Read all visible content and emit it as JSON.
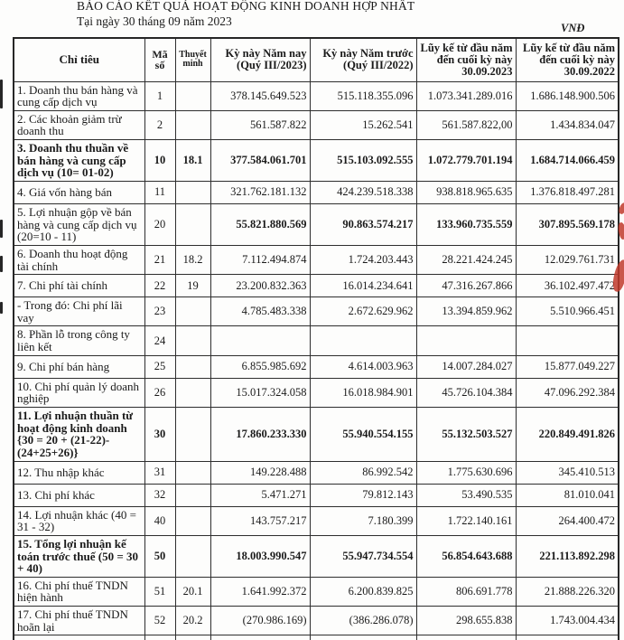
{
  "page": {
    "title": "BÁO CÁO KẾT QUẢ HOẠT ĐỘNG KINH DOANH HỢP NHẤT",
    "date_line": "Tại ngày 30 tháng 09 năm 2023",
    "currency_unit": "VNĐ"
  },
  "table": {
    "columns": [
      "Chỉ tiêu",
      "Mã số",
      "Thuyết minh",
      "Kỳ này Năm nay (Quý III/2023)",
      "Kỳ này Năm trước (Quý III/2022)",
      "Lũy kế từ đầu năm đến cuối kỳ này 30.09.2023",
      "Lũy kế từ đầu năm đến cuối kỳ này 30.09.2022"
    ],
    "rows": [
      {
        "label": "1. Doanh thu bán hàng và cung cấp dịch vụ",
        "code": "1",
        "note": "",
        "values": [
          "378.145.649.523",
          "515.118.355.096",
          "1.073.341.289.016",
          "1.686.148.900.506"
        ],
        "bold": "none"
      },
      {
        "label": "2. Các khoản giảm trừ doanh thu",
        "code": "2",
        "note": "",
        "values": [
          "561.587.822",
          "15.262.541",
          "561.587.822,00",
          "1.434.834.047"
        ],
        "bold": "none"
      },
      {
        "label": "3. Doanh thu thuần về bán hàng và cung cấp dịch vụ (10= 01-02)",
        "code": "10",
        "note": "18.1",
        "values": [
          "377.584.061.701",
          "515.103.092.555",
          "1.072.779.701.194",
          "1.684.714.066.459"
        ],
        "bold": "all"
      },
      {
        "label": "4. Giá vốn hàng bán",
        "code": "11",
        "note": "",
        "values": [
          "321.762.181.132",
          "424.239.518.338",
          "938.818.965.635",
          "1.376.818.497.281"
        ],
        "bold": "none"
      },
      {
        "label": "5. Lợi nhuận gộp về bán hàng và cung cấp dịch vụ (20=10 - 11)",
        "code": "20",
        "note": "",
        "values": [
          "55.821.880.569",
          "90.863.574.217",
          "133.960.735.559",
          "307.895.569.178"
        ],
        "bold": "values"
      },
      {
        "label": "6. Doanh thu hoạt động tài chính",
        "code": "21",
        "note": "18.2",
        "values": [
          "7.112.494.874",
          "1.724.203.443",
          "28.221.424.245",
          "12.029.761.731"
        ],
        "bold": "none"
      },
      {
        "label": "7. Chi phí tài chính",
        "code": "22",
        "note": "19",
        "values": [
          "23.200.832.363",
          "16.014.234.641",
          "47.316.267.866",
          "36.102.497.472"
        ],
        "bold": "none"
      },
      {
        "label": "- Trong đó: Chi phí lãi vay",
        "code": "23",
        "note": "",
        "values": [
          "4.785.483.338",
          "2.672.629.962",
          "13.394.859.962",
          "5.510.966.451"
        ],
        "bold": "none"
      },
      {
        "label": "8. Phần lỗ trong công ty liên kết",
        "code": "24",
        "note": "",
        "values": [
          "",
          "",
          "",
          ""
        ],
        "bold": "none"
      },
      {
        "label": "9. Chi phí bán hàng",
        "code": "25",
        "note": "",
        "values": [
          "6.855.985.692",
          "4.614.003.963",
          "14.007.284.027",
          "15.877.049.227"
        ],
        "bold": "none"
      },
      {
        "label": "10. Chi phí quản lý doanh nghiệp",
        "code": "26",
        "note": "",
        "values": [
          "15.017.324.058",
          "16.018.984.901",
          "45.726.104.384",
          "47.096.292.384"
        ],
        "bold": "none"
      },
      {
        "label": "11. Lợi nhuận thuần từ hoạt động kinh doanh {30 = 20 + (21-22)-(24+25+26)}",
        "code": "30",
        "note": "",
        "values": [
          "17.860.233.330",
          "55.940.554.155",
          "55.132.503.527",
          "220.849.491.826"
        ],
        "bold": "all"
      },
      {
        "label": "12. Thu nhập khác",
        "code": "31",
        "note": "",
        "values": [
          "149.228.488",
          "86.992.542",
          "1.775.630.696",
          "345.410.513"
        ],
        "bold": "none"
      },
      {
        "label": "13. Chi phí khác",
        "code": "32",
        "note": "",
        "values": [
          "5.471.271",
          "79.812.143",
          "53.490.535",
          "81.010.041"
        ],
        "bold": "none"
      },
      {
        "label": "14. Lợi nhuận khác (40 = 31 - 32)",
        "code": "40",
        "note": "",
        "values": [
          "143.757.217",
          "7.180.399",
          "1.722.140.161",
          "264.400.472"
        ],
        "bold": "none"
      },
      {
        "label": "15. Tổng lợi nhuận kế toán trước thuế (50 = 30 + 40)",
        "code": "50",
        "note": "",
        "values": [
          "18.003.990.547",
          "55.947.734.554",
          "56.854.643.688",
          "221.113.892.298"
        ],
        "bold": "all"
      },
      {
        "label": "16. Chi phí thuế TNDN hiện hành",
        "code": "51",
        "note": "20.1",
        "values": [
          "1.641.992.372",
          "6.200.839.825",
          "806.691.778",
          "21.888.226.320"
        ],
        "bold": "none"
      },
      {
        "label": "17. Chi phí thuế TNDN hoãn lại",
        "code": "52",
        "note": "20.2",
        "values": [
          "(270.986.169)",
          "(386.286.078)",
          "298.655.838",
          "1.743.004.434"
        ],
        "bold": "none"
      },
      {
        "label": "",
        "code": "",
        "note": "",
        "values": [
          "",
          "",
          "",
          ""
        ],
        "bold": "none"
      }
    ]
  },
  "artifacts": {
    "stamp_color": "#bf3a2c",
    "scan_mark_color": "#262626"
  }
}
